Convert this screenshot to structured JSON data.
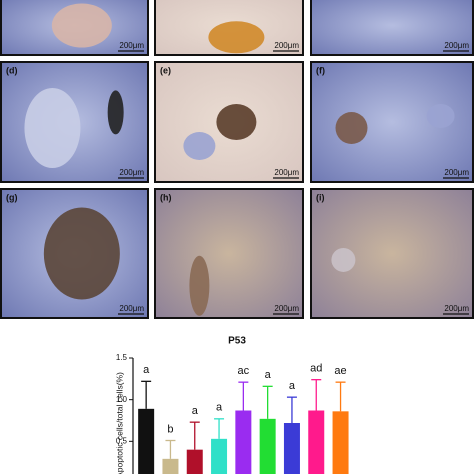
{
  "panels": [
    {
      "scale": "200μm"
    },
    {
      "scale": "200μm"
    },
    {
      "scale": "200μm"
    },
    {
      "label": "(d)",
      "scale": "200μm"
    },
    {
      "label": "(e)",
      "scale": "200μm"
    },
    {
      "label": "(f)",
      "scale": "200μm"
    },
    {
      "label": "(g)",
      "scale": "200μm"
    },
    {
      "label": "(h)",
      "scale": "200μm"
    },
    {
      "label": "(i)",
      "scale": "200μm"
    }
  ],
  "chart_data": {
    "type": "bar",
    "title": "P53",
    "y_label": "Apoptotic cells/total cells(%)",
    "categories": [
      null,
      null,
      null,
      null,
      null,
      null,
      null,
      null,
      null
    ],
    "values": [
      0.89,
      0.29,
      0.4,
      0.53,
      0.87,
      0.77,
      0.72,
      0.87,
      0.86
    ],
    "errors": [
      0.33,
      0.22,
      0.33,
      0.24,
      0.34,
      0.39,
      0.31,
      0.37,
      0.35
    ],
    "annotations": [
      "a",
      "b",
      "a",
      "a",
      "ac",
      "a",
      "a",
      "ad",
      "ae"
    ],
    "colors": [
      "#111111",
      "#c9b98c",
      "#b0102a",
      "#2fe0c8",
      "#9a2cf0",
      "#22dd33",
      "#3b3bd6",
      "#ff1a8c",
      "#ff7a10"
    ],
    "ylim": [
      0,
      1.5
    ],
    "yticks": [
      {
        "value": 0.5,
        "label": "0.5"
      },
      {
        "value": 1,
        "label": "1.0"
      },
      1.5
    ]
  }
}
